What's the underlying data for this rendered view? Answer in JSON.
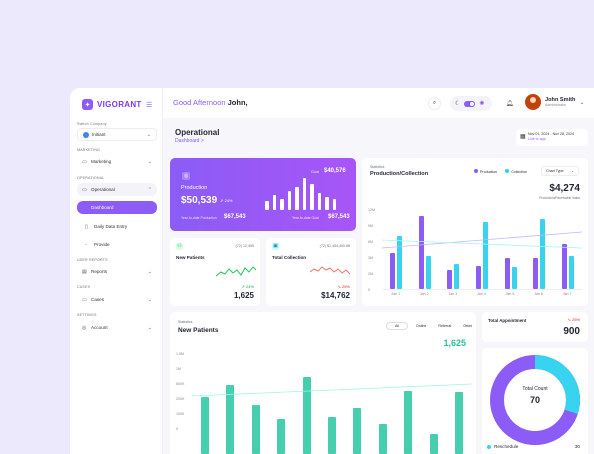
{
  "brand": {
    "logo_text": "VIGORANT",
    "accent": "#8b5cf6",
    "teal": "#2dd4bf"
  },
  "header": {
    "greeting": "Good Afternoon",
    "user_first": "John,",
    "user_name": "John Smith",
    "user_role": "Administrator"
  },
  "sidebar": {
    "switch_label": "Switch Company",
    "company": "Initiant",
    "marketing_label": "MARKETING",
    "marketing_item": "Marketing",
    "operational_label": "OPERATIONAL",
    "operational_item": "Operational",
    "sub_items": [
      "Dashboard",
      "Daily Data Entry",
      "Provide"
    ],
    "user_reports_label": "USER REPORTS",
    "reports_item": "Reports",
    "cases_label": "CASES",
    "cases_item": "Cases",
    "settings_label": "SETTINGS",
    "account_item": "Account"
  },
  "page": {
    "title": "Operational",
    "breadcrumb": "Dashboard  >"
  },
  "date_range": {
    "range": "Nov 01, 2024 - Nov 28, 2024",
    "sub": "Link to app"
  },
  "production": {
    "label": "Production",
    "value": "$50,539",
    "change": "24%",
    "goal_label": "Goal",
    "goal_value": "$40,576",
    "left_sub_label": "Year-to-date Production",
    "left_sub_value": "$67,543",
    "right_sub_label": "Year-to-date Goal",
    "right_sub_value": "$67,543",
    "bars": [
      8,
      14,
      10,
      18,
      22,
      30,
      24,
      16,
      12,
      10
    ]
  },
  "new_patients_card": {
    "label": "New Patients",
    "prev": "(72) 12,455",
    "change": "24%",
    "value": "1,625"
  },
  "total_collection_card": {
    "label": "Total Collection",
    "prev": "(72) $1,454,400.88",
    "change": "25%",
    "value": "$14,762"
  },
  "prod_collection": {
    "stat_label": "Statistics",
    "title": "Production/Collection",
    "legend": [
      "Production",
      "Collection"
    ],
    "chart_type": "Chart Type",
    "total": "$4,274",
    "total_sub": "Production/Receivable Value",
    "chart_data": {
      "type": "bar",
      "categories": [
        "Jan 1",
        "Jan 2",
        "Jan 3",
        "Jan 4",
        "Jan 5",
        "Jan 6",
        "Jan 7"
      ],
      "ylabels": [
        "12M",
        "9M",
        "6M",
        "3M",
        "2M",
        "0"
      ],
      "series": [
        {
          "name": "Production",
          "values": [
            36,
            74,
            19,
            23,
            31,
            31,
            46
          ]
        },
        {
          "name": "Collection",
          "values": [
            54,
            33,
            25,
            68,
            22,
            71,
            33
          ]
        }
      ],
      "ylim": [
        0,
        80
      ]
    }
  },
  "new_patients": {
    "stat_label": "Statistics",
    "title": "New Patients",
    "filters": [
      "All",
      "Online",
      "Referral",
      "Other"
    ],
    "value": "1,625",
    "chart_data": {
      "type": "bar",
      "ylabels": [
        "1.5M",
        "1M",
        "800K",
        "200K",
        "100K",
        "0"
      ],
      "values": [
        58,
        70,
        50,
        36,
        79,
        38,
        47,
        31,
        64,
        20,
        63
      ],
      "ylim": [
        0,
        100
      ]
    }
  },
  "total_appointment": {
    "label": "Total Appointment",
    "change": "25%",
    "value": "900"
  },
  "donut": {
    "center_label": "Total Count",
    "center_value": "70",
    "legend_label": "Reschedule",
    "legend_value": "30",
    "chart_data": {
      "type": "pie",
      "values": [
        70,
        30
      ]
    }
  }
}
